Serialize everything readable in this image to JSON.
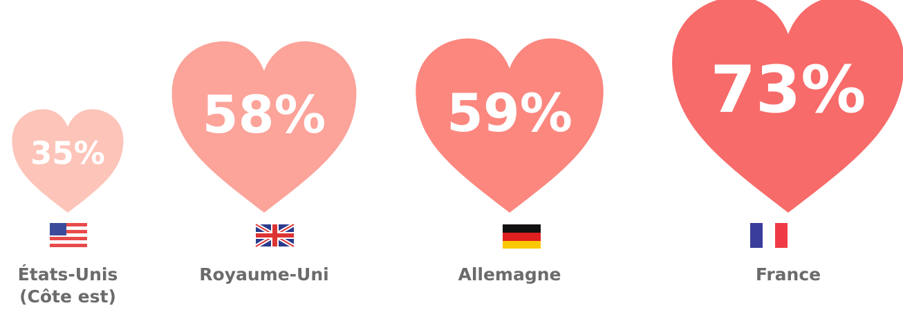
{
  "chart_data": {
    "type": "heart",
    "categories": [
      "États-Unis (Côte est)",
      "Royaume-Uni",
      "Allemagne",
      "France"
    ],
    "values": [
      35,
      58,
      59,
      73
    ],
    "value_labels": [
      "35%",
      "58%",
      "59%",
      "73%"
    ],
    "colors": [
      "#fdc4b9",
      "#fca39a",
      "#fb877f",
      "#f76b6a"
    ]
  }
}
